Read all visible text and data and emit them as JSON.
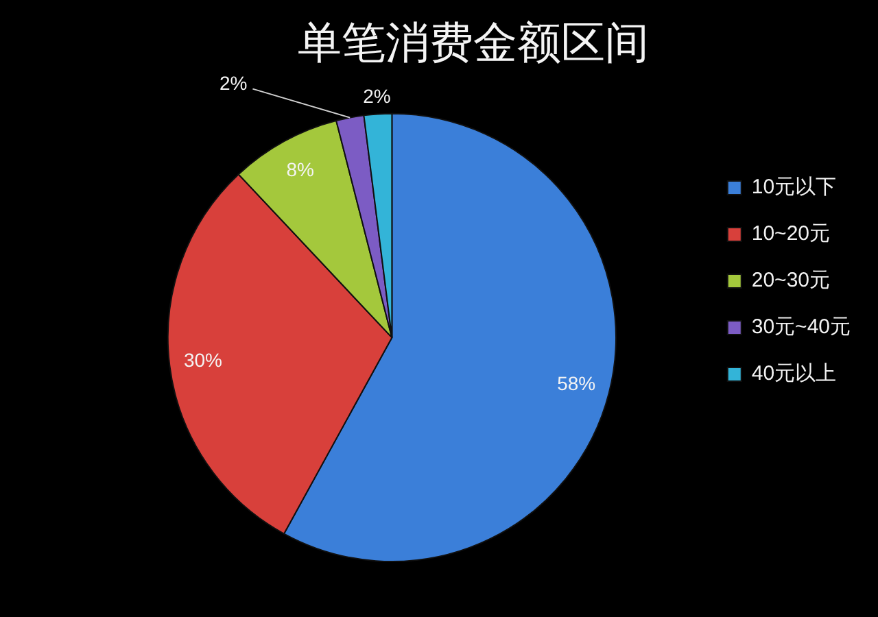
{
  "chart_data": {
    "type": "pie",
    "title": "单笔消费金额区间",
    "categories": [
      "10元以下",
      "10~20元",
      "20~30元",
      "30元~40元",
      "40元以上"
    ],
    "values": [
      58,
      30,
      8,
      2,
      2
    ],
    "colors": [
      "#3b7fd9",
      "#d8403b",
      "#a4c83c",
      "#7c5cc4",
      "#33b4d8"
    ],
    "value_labels": [
      "58%",
      "30%",
      "8%",
      "2%",
      "2%"
    ],
    "legend": "right"
  }
}
